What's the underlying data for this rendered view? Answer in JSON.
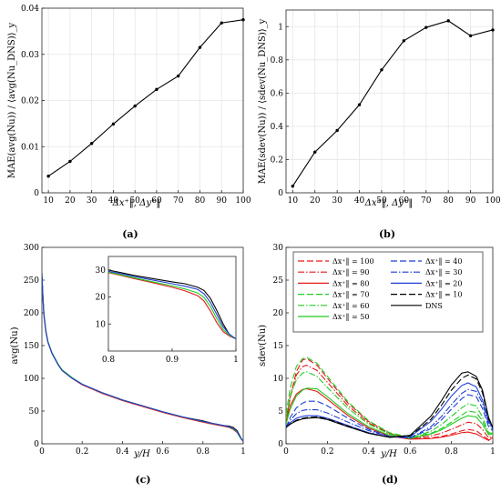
{
  "chart_data": [
    {
      "type": "line",
      "panel_label": "(a)",
      "xlabel": "Δx⁺‖, Δy⁺‖",
      "ylabel": "MAE(avg(Nu)) / ⟨avg(Nu_DNS)⟩_y",
      "xlim": [
        7,
        100
      ],
      "ylim": [
        0,
        0.04
      ],
      "xticks": [
        10,
        20,
        30,
        40,
        50,
        60,
        70,
        80,
        90,
        100
      ],
      "yticks": [
        0,
        0.01,
        0.02,
        0.03,
        0.04
      ],
      "ytick_labels": [
        "0",
        "0.01",
        "0.02",
        "0.03",
        "0.04"
      ],
      "x": [
        10,
        20,
        30,
        40,
        50,
        60,
        70,
        80,
        90,
        100
      ],
      "series": [
        {
          "values": [
            0.0036,
            0.0068,
            0.0107,
            0.0149,
            0.0188,
            0.0224,
            0.0253,
            0.0315,
            0.0368,
            0.0375
          ],
          "color": "#000000"
        }
      ],
      "grid": true
    },
    {
      "type": "line",
      "panel_label": "(b)",
      "xlabel": "Δx⁺‖, Δy⁺‖",
      "ylabel": "MAE(sdev(Nu)) / ⟨sdev(Nu_DNS)⟩_y",
      "xlim": [
        7,
        100
      ],
      "ylim": [
        0,
        1.1
      ],
      "xticks": [
        10,
        20,
        30,
        40,
        50,
        60,
        70,
        80,
        90,
        100
      ],
      "yticks": [
        0,
        0.2,
        0.4,
        0.6,
        0.8,
        1
      ],
      "ytick_labels": [
        "0",
        "0.2",
        "0.4",
        "0.6",
        "0.8",
        "1"
      ],
      "x": [
        10,
        20,
        30,
        40,
        50,
        60,
        70,
        80,
        90,
        100
      ],
      "series": [
        {
          "values": [
            0.04,
            0.245,
            0.375,
            0.53,
            0.74,
            0.915,
            0.995,
            1.035,
            0.945,
            0.98
          ],
          "color": "#000000"
        }
      ],
      "grid": true
    },
    {
      "type": "line",
      "panel_label": "(c)",
      "xlabel": "y/H",
      "ylabel": "avg(Nu)",
      "xlim": [
        0,
        1
      ],
      "ylim": [
        0,
        300
      ],
      "xticks": [
        0,
        0.2,
        0.4,
        0.6,
        0.8,
        1
      ],
      "xtick_labels": [
        "0",
        "0.2",
        "0.4",
        "0.6",
        "0.8",
        "1"
      ],
      "yticks": [
        0,
        50,
        100,
        150,
        200,
        250,
        300
      ],
      "ytick_labels": [
        "0",
        "50",
        "100",
        "150",
        "200",
        "250",
        "300"
      ],
      "x": [
        0,
        0.005,
        0.01,
        0.02,
        0.03,
        0.05,
        0.08,
        0.1,
        0.15,
        0.2,
        0.3,
        0.4,
        0.5,
        0.6,
        0.7,
        0.8,
        0.85,
        0.9,
        0.93,
        0.95,
        0.97,
        0.98,
        0.99,
        1.0
      ],
      "series": [
        {
          "values": [
            260,
            225,
            198,
            172,
            156,
            139,
            122,
            113,
            101,
            91,
            78,
            67,
            58,
            49,
            41,
            35,
            31,
            28,
            27,
            25,
            20,
            14,
            8,
            4
          ],
          "color": "#000000"
        },
        {
          "values": [
            255,
            223,
            196,
            170,
            155,
            138,
            121,
            112,
            100,
            90,
            77,
            66,
            57,
            48,
            40,
            33,
            30,
            27,
            25,
            22,
            17,
            12,
            7,
            4
          ],
          "color": "#e41a1c"
        },
        {
          "values": [
            258,
            226,
            199,
            172,
            156,
            139,
            122,
            113,
            101,
            91,
            78,
            67,
            58,
            49,
            41,
            34,
            31,
            28,
            26,
            23,
            18,
            12,
            7,
            4
          ],
          "color": "#22cc22"
        },
        {
          "values": [
            257,
            224,
            197,
            171,
            155,
            138,
            121,
            112,
            100,
            91,
            78,
            67,
            58,
            49,
            41,
            34,
            31,
            28,
            26,
            24,
            19,
            13,
            8,
            4
          ],
          "color": "#1f3fd4"
        }
      ],
      "inset": {
        "xlim": [
          0.8,
          1
        ],
        "ylim": [
          0,
          35
        ],
        "xticks": [
          0.8,
          0.9,
          1
        ],
        "xtick_labels": [
          "0.8",
          "0.9",
          "1"
        ],
        "yticks": [
          10,
          20,
          30
        ],
        "ytick_labels": [
          "10",
          "20",
          "30"
        ],
        "x": [
          0.8,
          0.82,
          0.84,
          0.86,
          0.88,
          0.9,
          0.92,
          0.94,
          0.95,
          0.96,
          0.97,
          0.98,
          0.99,
          1.0
        ],
        "series": [
          {
            "values": [
              30,
              29,
              28,
              27.2,
              26.4,
              25.6,
              24.9,
              23.6,
              22.4,
              19.5,
              15,
              10,
              6,
              4.5
            ],
            "color": "#000000"
          },
          {
            "values": [
              29,
              28,
              26.8,
              25.8,
              24.7,
              23.6,
              22.3,
              20.5,
              18.5,
              14.8,
              10.5,
              7.2,
              5.5,
              4.5
            ],
            "color": "#e41a1c"
          },
          {
            "values": [
              29.2,
              28.2,
              27.1,
              26.1,
              25.1,
              24.1,
              23,
              21.5,
              19.8,
              16.5,
              12,
              8,
              5.8,
              4.5
            ],
            "color": "#22cc22"
          },
          {
            "values": [
              29.5,
              28.6,
              27.6,
              26.7,
              25.8,
              24.9,
              24,
              22.8,
              21.2,
              18,
              13.5,
              9,
              6.2,
              4.5
            ],
            "color": "#1f3fd4"
          }
        ]
      },
      "grid": false
    },
    {
      "type": "line",
      "panel_label": "(d)",
      "xlabel": "y/H",
      "ylabel": "sdev(Nu)",
      "xlim": [
        0,
        1
      ],
      "ylim": [
        0,
        30
      ],
      "xticks": [
        0,
        0.2,
        0.4,
        0.6,
        0.8,
        1
      ],
      "xtick_labels": [
        "0",
        "0.2",
        "0.4",
        "0.6",
        "0.8",
        "1"
      ],
      "yticks": [
        0,
        5,
        10,
        15,
        20,
        25,
        30
      ],
      "ytick_labels": [
        "0",
        "5",
        "10",
        "15",
        "20",
        "25",
        "30"
      ],
      "x": [
        0,
        0.02,
        0.05,
        0.08,
        0.1,
        0.15,
        0.2,
        0.3,
        0.4,
        0.5,
        0.6,
        0.7,
        0.75,
        0.8,
        0.85,
        0.88,
        0.92,
        0.95,
        0.98,
        1.0
      ],
      "series": [
        {
          "name": "Δx⁺‖ = 100",
          "values": [
            3,
            7,
            11,
            12.8,
            13,
            12,
            10,
            6.2,
            3.4,
            1.6,
            0.8,
            0.9,
            1.1,
            1.5,
            2,
            2.2,
            2,
            1.3,
            0.6,
            1
          ],
          "color": "#e41a1c",
          "dash": "7,3"
        },
        {
          "name": "Δx⁺‖ = 90",
          "values": [
            3.5,
            7.3,
            10.5,
            11.8,
            12,
            11.2,
            9.4,
            5.8,
            3.2,
            1.5,
            0.8,
            1.2,
            1.6,
            2.2,
            2.9,
            3.3,
            3.1,
            2.2,
            0.9,
            1.2
          ],
          "color": "#e41a1c",
          "dash": "7,2,1.5,2"
        },
        {
          "name": "Δx⁺‖ = 80",
          "values": [
            3,
            5.8,
            7.6,
            8.3,
            8.4,
            8,
            6.8,
            4.3,
            2.4,
            1.2,
            0.7,
            0.8,
            1,
            1.3,
            1.7,
            1.8,
            1.5,
            1,
            0.5,
            1
          ],
          "color": "#e41a1c",
          "dash": ""
        },
        {
          "name": "Δx⁺‖ = 70",
          "values": [
            4.5,
            8.5,
            11.8,
            13,
            13.2,
            12.3,
            10.3,
            6.4,
            3.5,
            1.7,
            1,
            1.6,
            2.3,
            3.3,
            4.4,
            5,
            4.8,
            3.5,
            1.5,
            1.5
          ],
          "color": "#22cc22",
          "dash": "7,3"
        },
        {
          "name": "Δx⁺‖ = 60",
          "values": [
            3.8,
            7.2,
            9.8,
            10.8,
            11,
            10.3,
            8.6,
            5.4,
            3,
            1.5,
            0.9,
            1.9,
            2.9,
            4.2,
            5.5,
            6.1,
            5.8,
            4.1,
            1.7,
            1.6
          ],
          "color": "#22cc22",
          "dash": "7,2,1.5,2"
        },
        {
          "name": "Δx⁺‖ = 50",
          "values": [
            3,
            5.3,
            7.3,
            8.2,
            8.5,
            8.4,
            7.2,
            4.6,
            2.6,
            1.3,
            0.8,
            1.5,
            2.1,
            3,
            3.9,
            4.3,
            4.1,
            3,
            1.4,
            1.5
          ],
          "color": "#22cc22",
          "dash": ""
        },
        {
          "name": "Δx⁺‖ = 40",
          "values": [
            2.5,
            4,
            5.5,
            6.2,
            6.5,
            6.5,
            5.8,
            3.9,
            2.2,
            1.1,
            0.9,
            2.3,
            3.6,
            5.3,
            6.9,
            7.5,
            7.2,
            5.4,
            2.6,
            2
          ],
          "color": "#1f3fd4",
          "dash": "7,3"
        },
        {
          "name": "Δx⁺‖ = 30",
          "values": [
            2.5,
            3.6,
            4.6,
            5.1,
            5.2,
            5.2,
            4.7,
            3.3,
            2,
            1.1,
            0.9,
            2.6,
            4.1,
            6,
            7.7,
            8.3,
            8,
            6.2,
            3,
            2.2
          ],
          "color": "#1f3fd4",
          "dash": "7,2,1.5,2"
        },
        {
          "name": "Δx⁺‖ = 20",
          "values": [
            2.5,
            3.2,
            3.9,
            4.2,
            4.3,
            4.3,
            3.9,
            2.8,
            1.7,
            1,
            1.1,
            3.4,
            5.2,
            7.3,
            8.9,
            9.3,
            8.7,
            6.7,
            3.4,
            2.4
          ],
          "color": "#1f3fd4",
          "dash": ""
        },
        {
          "name": "Δx⁺‖ = 10",
          "values": [
            2.5,
            3,
            3.6,
            3.9,
            4,
            4.1,
            3.8,
            2.7,
            1.6,
            1,
            1.2,
            3.7,
            5.8,
            8.2,
            10,
            10.5,
            9.9,
            7.8,
            3.8,
            2.5
          ],
          "color": "#000000",
          "dash": "7,3"
        },
        {
          "name": "DNS",
          "values": [
            2.5,
            3,
            3.5,
            3.8,
            3.9,
            4,
            3.7,
            2.6,
            1.6,
            1,
            1.3,
            4.2,
            6.5,
            9,
            10.8,
            11,
            10.3,
            8.2,
            4,
            2.5
          ],
          "color": "#000000",
          "dash": ""
        }
      ],
      "legend": "top-left, two columns",
      "grid": false
    }
  ]
}
